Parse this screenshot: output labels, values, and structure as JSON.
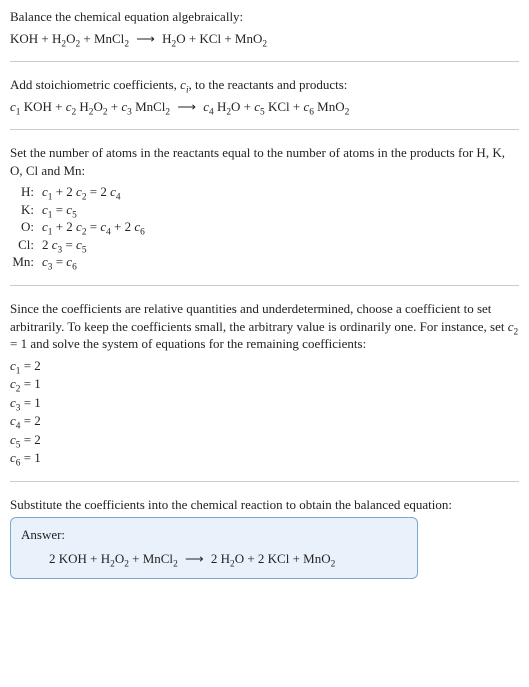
{
  "colors": {
    "text": "#222222",
    "rule": "#cccccc",
    "answer_border": "#7fa7d4",
    "answer_bg": "#e9f2fb"
  },
  "s1": {
    "prompt": "Balance the chemical equation algebraically:",
    "eq_html": "KOH + H<sub>2</sub>O<sub>2</sub> + MnCl<sub>2</sub> <span class='arrow'>⟶</span> H<sub>2</sub>O + KCl + MnO<sub>2</sub>"
  },
  "s2": {
    "prompt_html": "Add stoichiometric coefficients, <em class='var'>c<sub>i</sub></em>, to the reactants and products:",
    "eq_html": "<em class='var'>c</em><sub>1</sub> KOH + <em class='var'>c</em><sub>2</sub> H<sub>2</sub>O<sub>2</sub> + <em class='var'>c</em><sub>3</sub> MnCl<sub>2</sub> <span class='arrow'>⟶</span> <em class='var'>c</em><sub>4</sub> H<sub>2</sub>O + <em class='var'>c</em><sub>5</sub> KCl + <em class='var'>c</em><sub>6</sub> MnO<sub>2</sub>"
  },
  "s3": {
    "prompt": "Set the number of atoms in the reactants equal to the number of atoms in the products for H, K, O, Cl and Mn:",
    "rows": [
      {
        "label": "H:",
        "eq_html": "<em class='var'>c</em><sub>1</sub> + 2 <em class='var'>c</em><sub>2</sub> = 2 <em class='var'>c</em><sub>4</sub>"
      },
      {
        "label": "K:",
        "eq_html": "<em class='var'>c</em><sub>1</sub> = <em class='var'>c</em><sub>5</sub>"
      },
      {
        "label": "O:",
        "eq_html": "<em class='var'>c</em><sub>1</sub> + 2 <em class='var'>c</em><sub>2</sub> = <em class='var'>c</em><sub>4</sub> + 2 <em class='var'>c</em><sub>6</sub>"
      },
      {
        "label": "Cl:",
        "eq_html": "2 <em class='var'>c</em><sub>3</sub> = <em class='var'>c</em><sub>5</sub>"
      },
      {
        "label": "Mn:",
        "eq_html": "<em class='var'>c</em><sub>3</sub> = <em class='var'>c</em><sub>6</sub>"
      }
    ]
  },
  "s4": {
    "prompt_html": "Since the coefficients are relative quantities and underdetermined, choose a coefficient to set arbitrarily. To keep the coefficients small, the arbitrary value is ordinarily one. For instance, set <em class='var'>c</em><sub>2</sub> = 1 and solve the system of equations for the remaining coefficients:",
    "coefs": [
      "<em class='var'>c</em><sub>1</sub> = 2",
      "<em class='var'>c</em><sub>2</sub> = 1",
      "<em class='var'>c</em><sub>3</sub> = 1",
      "<em class='var'>c</em><sub>4</sub> = 2",
      "<em class='var'>c</em><sub>5</sub> = 2",
      "<em class='var'>c</em><sub>6</sub> = 1"
    ]
  },
  "s5": {
    "prompt": "Substitute the coefficients into the chemical reaction to obtain the balanced equation:",
    "answer_label": "Answer:",
    "answer_eq_html": "2 KOH + H<sub>2</sub>O<sub>2</sub> + MnCl<sub>2</sub> <span class='arrow'>⟶</span> 2 H<sub>2</sub>O + 2 KCl + MnO<sub>2</sub>"
  }
}
